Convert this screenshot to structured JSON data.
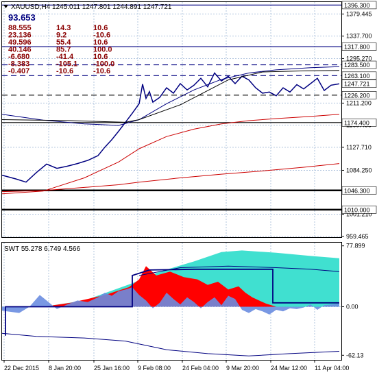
{
  "chart_data": [
    {
      "type": "line",
      "panel": "price",
      "title": "XAUUSD,H4 1245.011 1247.801 1244.891 1247.721",
      "instrument": "XAUUSD",
      "timeframe": "H4",
      "ohlc": {
        "open": 1245.011,
        "high": 1247.801,
        "low": 1244.891,
        "close": 1247.721
      },
      "ylim": [
        958,
        1402
      ],
      "y_ticks": [
        1379.445,
        1337.7,
        1295.27,
        1211.2,
        1169.455,
        1127.71,
        1084.25,
        1001.21,
        959.465
      ],
      "x_ticks": [
        "22 Dec 2015",
        "8 Jan 20:00",
        "25 Jan 16:00",
        "9 Feb 08:00",
        "24 Feb 04:00",
        "9 Mar 20:00",
        "24 Mar 12:00",
        "11 Apr 04:00"
      ],
      "header_value": "93.653",
      "indicator_rows": [
        [
          "88.555",
          "14.3",
          "10.6"
        ],
        [
          "23.136",
          "9.2",
          "-10.6"
        ],
        [
          "49.596",
          "55.4",
          "10.6"
        ],
        [
          "40.146",
          "85.7",
          "100.0"
        ],
        [
          "-6.680",
          "-41.4",
          "10.6"
        ],
        [
          "-8.383",
          "-105.1",
          "-100.0"
        ],
        [
          "-0.407",
          "-10.6",
          "-10.6"
        ]
      ],
      "levels": [
        {
          "label": "1396.300",
          "value": 1396.3,
          "style": "solid",
          "color": "#000080",
          "thick": false
        },
        {
          "label": "1317.800",
          "value": 1317.8,
          "style": "solid",
          "color": "#000080",
          "thick": false
        },
        {
          "label": "1283.500",
          "value": 1283.5,
          "style": "dashed",
          "color": "#000080",
          "thick": false
        },
        {
          "label": "1263.100",
          "value": 1263.1,
          "style": "dashed",
          "color": "#000080",
          "thick": false
        },
        {
          "label": "1247.721",
          "value": 1247.721,
          "style": "none",
          "color": "#000080",
          "thick": false
        },
        {
          "label": "1226.200",
          "value": 1226.2,
          "style": "dashed",
          "color": "#000000",
          "thick": false
        },
        {
          "label": "1174.400",
          "value": 1174.4,
          "style": "solid",
          "color": "#000000",
          "thick": false
        },
        {
          "label": "1046.300",
          "value": 1046.3,
          "style": "solid",
          "color": "#000000",
          "thick": true
        },
        {
          "label": "1010.000",
          "value": 1010.0,
          "style": "solid",
          "color": "#000000",
          "thick": true
        }
      ],
      "series": [
        {
          "color": "#000080",
          "x": [
            0,
            20,
            35,
            50,
            65,
            80,
            95,
            110,
            125,
            140,
            150,
            160,
            170,
            180,
            190,
            200,
            205,
            210,
            215,
            220,
            230,
            240,
            250,
            260,
            270,
            280,
            290,
            300,
            310,
            320,
            330,
            340,
            350,
            360,
            370,
            380,
            390,
            400,
            410,
            420,
            430,
            440,
            450,
            460,
            470,
            480,
            492
          ],
          "values": [
            1075,
            1068,
            1062,
            1080,
            1096,
            1088,
            1092,
            1097,
            1103,
            1112,
            1128,
            1142,
            1158,
            1175,
            1192,
            1210,
            1247,
            1220,
            1233,
            1213,
            1222,
            1240,
            1230,
            1248,
            1236,
            1245,
            1258,
            1242,
            1268,
            1253,
            1262,
            1248,
            1262,
            1255,
            1240,
            1230,
            1232,
            1225,
            1240,
            1232,
            1246,
            1238,
            1248,
            1258,
            1235,
            1245,
            1247.7
          ]
        },
        {
          "color": "#000080",
          "x": [
            0,
            60,
            120,
            170,
            200,
            240,
            280,
            320,
            360,
            400,
            450,
            492
          ],
          "values": [
            1190,
            1179,
            1172,
            1169,
            1180,
            1210,
            1236,
            1256,
            1268,
            1274,
            1278,
            1280
          ]
        },
        {
          "color": "#000000",
          "x": [
            0,
            100,
            180,
            200,
            260,
            330,
            380,
            440,
            492
          ],
          "values": [
            1180,
            1178,
            1175,
            1180,
            1208,
            1255,
            1270,
            1272,
            1273
          ]
        },
        {
          "color": "#cc0000",
          "x": [
            0,
            60,
            120,
            170,
            200,
            240,
            280,
            320,
            360,
            400,
            450,
            492
          ],
          "values": [
            1040,
            1045,
            1070,
            1100,
            1125,
            1148,
            1162,
            1172,
            1178,
            1182,
            1186,
            1190
          ]
        },
        {
          "color": "#cc0000",
          "x": [
            0,
            60,
            120,
            170,
            200,
            260,
            320,
            380,
            440,
            492
          ],
          "values": [
            1044,
            1046,
            1052,
            1057,
            1062,
            1070,
            1077,
            1083,
            1090,
            1097
          ]
        }
      ]
    },
    {
      "type": "area",
      "panel": "oscillator",
      "title": "SWT 55.278 6.749 4.566",
      "ylim": [
        -68,
        82
      ],
      "y_ticks": [
        77.899,
        0.0,
        -62.13
      ],
      "series": [
        {
          "name": "bullish",
          "color": "#ff0000",
          "x": [
            0,
            60,
            100,
            150,
            185,
            200,
            210,
            225,
            245,
            265,
            285,
            300,
            315,
            330,
            345,
            355,
            365,
            375,
            385,
            400
          ],
          "values": [
            0,
            0,
            5,
            15,
            25,
            35,
            52,
            40,
            45,
            38,
            35,
            28,
            32,
            22,
            26,
            18,
            12,
            8,
            4,
            0
          ]
        },
        {
          "name": "cloud",
          "color": "#40e0d0",
          "x": [
            0,
            60,
            120,
            190,
            230,
            280,
            320,
            350,
            400,
            450,
            492
          ],
          "values": [
            0,
            0,
            8,
            30,
            45,
            58,
            70,
            72,
            69,
            65,
            62
          ]
        },
        {
          "name": "oscillator",
          "color": "#6a8de0",
          "x": [
            0,
            25,
            40,
            55,
            65,
            80,
            95,
            110,
            125,
            140,
            150,
            160,
            170,
            180,
            190,
            200,
            210,
            220,
            230,
            240,
            250,
            260,
            270,
            280,
            290,
            300,
            310,
            320,
            330,
            340,
            350,
            360,
            370,
            380,
            390,
            400,
            410,
            420,
            430,
            440,
            450,
            460,
            470,
            480,
            492
          ],
          "values": [
            -5,
            -8,
            0,
            15,
            8,
            -3,
            3,
            8,
            6,
            12,
            18,
            14,
            20,
            22,
            25,
            15,
            8,
            -2,
            5,
            18,
            10,
            3,
            12,
            6,
            -2,
            6,
            12,
            2,
            14,
            10,
            -4,
            -8,
            -3,
            -6,
            -10,
            -4,
            -6,
            -2,
            -3,
            -1,
            3,
            -4,
            2,
            3,
            4
          ]
        },
        {
          "name": "signal",
          "color": "#000080",
          "x": [
            5,
            5,
            190,
            190,
            215,
            280,
            395,
            395,
            492
          ],
          "values": [
            -37,
            0,
            0,
            40,
            47,
            48,
            48,
            5,
            5
          ]
        },
        {
          "name": "band-lower",
          "color": "#000080",
          "x": [
            0,
            50,
            120,
            180,
            240,
            300,
            360,
            420,
            492
          ],
          "values": [
            -34,
            -38,
            -40,
            -44,
            -55,
            -60,
            -63,
            -60,
            -57
          ]
        },
        {
          "name": "band-upper",
          "color": "#000080",
          "x": [
            200,
            260,
            330,
            400,
            450,
            492
          ],
          "values": [
            40,
            50,
            52,
            50,
            48,
            45
          ]
        }
      ]
    }
  ]
}
